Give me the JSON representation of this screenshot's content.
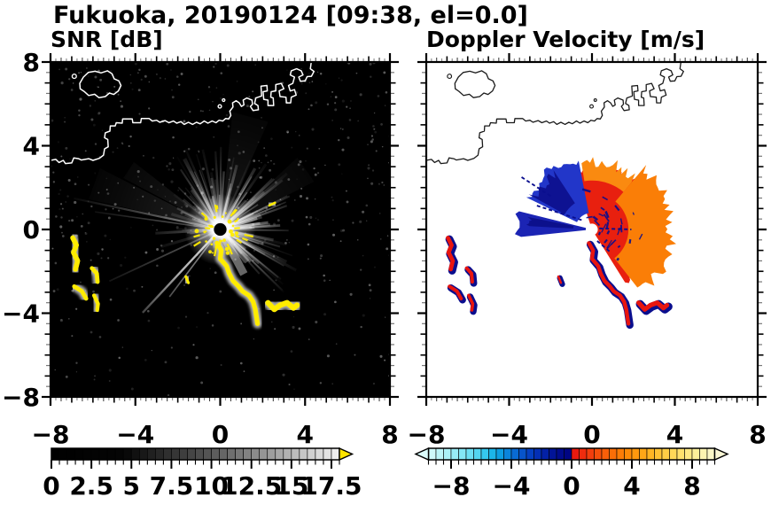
{
  "header": {
    "title": "Fukuoka, 20190124 [09:38, el=0.0]"
  },
  "panels": [
    {
      "id": "snr",
      "title": "SNR [dB]",
      "x_range": [
        -8,
        8
      ],
      "y_range": [
        -8,
        8
      ],
      "x_tick_values": [
        -8,
        -4,
        0,
        4,
        8
      ],
      "x_tick_labels": [
        "−8",
        "−4",
        "0",
        "4",
        "8"
      ],
      "y_tick_values": [
        8,
        4,
        0,
        -4,
        -8
      ],
      "y_tick_labels": [
        "8",
        "4",
        "0",
        "−4",
        "−8"
      ],
      "show_y_labels": true
    },
    {
      "id": "velocity",
      "title": "Doppler Velocity [m/s]",
      "x_range": [
        -8,
        8
      ],
      "y_range": [
        -8,
        8
      ],
      "x_tick_values": [
        -8,
        -4,
        0,
        4,
        8
      ],
      "x_tick_labels": [
        "−8",
        "−4",
        "0",
        "4",
        "8"
      ],
      "y_tick_values": [
        8,
        4,
        0,
        -4,
        -8
      ],
      "y_tick_labels": [],
      "show_y_labels": false
    }
  ],
  "colorbars": [
    {
      "id": "snr",
      "min": 0,
      "max": 18,
      "segment": 0.5,
      "minor_step": 0.5,
      "tick_values": [
        0,
        2.5,
        5,
        7.5,
        10,
        12.5,
        15,
        17.5
      ],
      "tick_labels": [
        "0",
        "2.5",
        "5",
        "7.5",
        "10",
        "12.5",
        "15",
        "17.5"
      ],
      "stops": [
        [
          0,
          "#000000"
        ],
        [
          4.5,
          "#050505"
        ],
        [
          6,
          "#1c1c1c"
        ],
        [
          8,
          "#3a3a3a"
        ],
        [
          10,
          "#585858"
        ],
        [
          12,
          "#7d7d7d"
        ],
        [
          14,
          "#a3a3a3"
        ],
        [
          16,
          "#cbcbcb"
        ],
        [
          17.5,
          "#e8e8e8"
        ],
        [
          18,
          "#f2f2f2"
        ]
      ],
      "over_color": "#ffe400",
      "under_color": null
    },
    {
      "id": "velocity",
      "min": -9.5,
      "max": 9.5,
      "segment": 0.5,
      "minor_step": 0.5,
      "tick_values": [
        -8,
        -4,
        0,
        4,
        8
      ],
      "tick_labels": [
        "−8",
        "−4",
        "0",
        "4",
        "8"
      ],
      "stops": [
        [
          -9.5,
          "#d9fbfb"
        ],
        [
          -8.5,
          "#b4f3f7"
        ],
        [
          -7.5,
          "#8fe9f5"
        ],
        [
          -6.5,
          "#62dcf3"
        ],
        [
          -5.75,
          "#35c8ee"
        ],
        [
          -5,
          "#0fabe6"
        ],
        [
          -4.25,
          "#0b84db"
        ],
        [
          -3.5,
          "#085ed0"
        ],
        [
          -2.75,
          "#0540c2"
        ],
        [
          -2,
          "#0327ae"
        ],
        [
          -1.25,
          "#021497"
        ],
        [
          -0.5,
          "#010787"
        ],
        [
          -0.01,
          "#000480"
        ],
        [
          0,
          "#e60f0f"
        ],
        [
          0.75,
          "#ef2c0e"
        ],
        [
          1.5,
          "#f4470c"
        ],
        [
          2.25,
          "#f85f09"
        ],
        [
          3,
          "#fb7506"
        ],
        [
          3.75,
          "#fd8a07"
        ],
        [
          4.5,
          "#ffa011"
        ],
        [
          5.25,
          "#ffb524"
        ],
        [
          6,
          "#ffc83c"
        ],
        [
          6.75,
          "#ffd858"
        ],
        [
          7.5,
          "#ffe678"
        ],
        [
          8.25,
          "#fdf09a"
        ],
        [
          9,
          "#fcf6bc"
        ],
        [
          9.5,
          "#faf7d0"
        ]
      ],
      "over_color": "#faf7d4",
      "under_color": "#dbfdfd"
    }
  ],
  "map": {
    "coastline_main": [
      [
        -8,
        3.3
      ],
      [
        -7.75,
        3.35
      ],
      [
        -7.6,
        3.2
      ],
      [
        -7.4,
        3.3
      ],
      [
        -7.3,
        3.15
      ],
      [
        -7,
        3.18
      ],
      [
        -6.9,
        3.42
      ],
      [
        -6.68,
        3.38
      ],
      [
        -6.55,
        3.32
      ],
      [
        -6.2,
        3.38
      ],
      [
        -6,
        3.3
      ],
      [
        -5.7,
        3.4
      ],
      [
        -5.5,
        3.55
      ],
      [
        -5.45,
        3.85
      ],
      [
        -5.28,
        3.95
      ],
      [
        -5.3,
        4.3
      ],
      [
        -5.45,
        4.38
      ],
      [
        -5.42,
        4.62
      ],
      [
        -5.2,
        4.7
      ],
      [
        -5.18,
        4.95
      ],
      [
        -4.95,
        4.95
      ],
      [
        -4.9,
        5.1
      ],
      [
        -4.62,
        5.08
      ],
      [
        -4.6,
        5.28
      ],
      [
        -4.15,
        5.28
      ],
      [
        -4.12,
        5.1
      ],
      [
        -3.75,
        5.1
      ],
      [
        -3.72,
        5.3
      ],
      [
        -3.35,
        5.3
      ],
      [
        -3.2,
        5.18
      ],
      [
        -3,
        5.22
      ],
      [
        -2.85,
        5.12
      ],
      [
        -2.6,
        5.2
      ],
      [
        -2.42,
        5.1
      ],
      [
        -2.2,
        5.18
      ],
      [
        -2.05,
        5.08
      ],
      [
        -1.85,
        5.15
      ],
      [
        -1.7,
        5.02
      ],
      [
        -1.5,
        5.12
      ],
      [
        -1.3,
        5.02
      ],
      [
        -1.12,
        5.12
      ],
      [
        -0.95,
        5.05
      ],
      [
        -0.75,
        5.18
      ],
      [
        -0.58,
        5.08
      ],
      [
        -0.38,
        5.18
      ],
      [
        -0.2,
        5.1
      ],
      [
        -0.05,
        5.22
      ],
      [
        0.12,
        5.18
      ],
      [
        0.25,
        5.3
      ],
      [
        0.4,
        5.28
      ],
      [
        0.5,
        5.45
      ],
      [
        0.45,
        5.65
      ],
      [
        0.6,
        5.85
      ],
      [
        0.58,
        6.05
      ],
      [
        0.75,
        6.15
      ],
      [
        0.9,
        6.05
      ],
      [
        1,
        5.88
      ],
      [
        1.12,
        5.95
      ],
      [
        1.08,
        6.18
      ],
      [
        1.25,
        6.28
      ],
      [
        1.5,
        6.18
      ],
      [
        1.52,
        5.98
      ],
      [
        1.42,
        5.88
      ],
      [
        1.55,
        5.68
      ],
      [
        1.8,
        5.72
      ],
      [
        1.78,
        5.92
      ],
      [
        1.62,
        6.02
      ],
      [
        1.68,
        6.28
      ],
      [
        1.95,
        6.38
      ],
      [
        1.92,
        6.85
      ],
      [
        2.2,
        6.88
      ],
      [
        2.22,
        6.62
      ],
      [
        2.02,
        6.58
      ],
      [
        2.05,
        6.22
      ],
      [
        2.25,
        6.18
      ],
      [
        2.25,
        5.92
      ],
      [
        2.52,
        5.92
      ],
      [
        2.5,
        6.28
      ],
      [
        2.38,
        6.32
      ],
      [
        2.4,
        6.58
      ],
      [
        2.62,
        6.62
      ],
      [
        2.62,
        6.92
      ],
      [
        2.88,
        6.98
      ],
      [
        3,
        6.72
      ],
      [
        2.78,
        6.62
      ],
      [
        2.82,
        6.35
      ],
      [
        3.1,
        6.32
      ],
      [
        3.12,
        6.05
      ],
      [
        3.32,
        6.05
      ],
      [
        3.35,
        6.32
      ],
      [
        3.58,
        6.42
      ],
      [
        3.5,
        6.68
      ],
      [
        3.3,
        6.62
      ],
      [
        3.22,
        6.88
      ],
      [
        3.42,
        6.98
      ],
      [
        3.5,
        7.28
      ],
      [
        3.3,
        7.38
      ],
      [
        3.35,
        7.58
      ],
      [
        3.6,
        7.68
      ],
      [
        3.82,
        7.58
      ],
      [
        3.9,
        7.38
      ],
      [
        3.7,
        7.28
      ],
      [
        3.78,
        7.08
      ],
      [
        4,
        7.1
      ],
      [
        4.1,
        7.3
      ],
      [
        4.3,
        7.32
      ],
      [
        4.42,
        7.55
      ],
      [
        4.25,
        7.68
      ],
      [
        4.3,
        8.05
      ]
    ],
    "island": [
      [
        -6.62,
        6.98
      ],
      [
        -6.45,
        7.28
      ],
      [
        -6.22,
        7.5
      ],
      [
        -5.9,
        7.56
      ],
      [
        -5.62,
        7.48
      ],
      [
        -5.32,
        7.58
      ],
      [
        -5.1,
        7.44
      ],
      [
        -5,
        7.2
      ],
      [
        -4.78,
        7.1
      ],
      [
        -4.68,
        6.88
      ],
      [
        -4.8,
        6.62
      ],
      [
        -5.02,
        6.45
      ],
      [
        -5.22,
        6.52
      ],
      [
        -5.42,
        6.35
      ],
      [
        -5.72,
        6.3
      ],
      [
        -5.92,
        6.46
      ],
      [
        -6.2,
        6.4
      ],
      [
        -6.42,
        6.6
      ],
      [
        -6.6,
        6.72
      ]
    ],
    "islets": [
      [
        -0.02,
        5.88,
        0.08
      ],
      [
        0.16,
        6.18,
        0.06
      ],
      [
        -6.88,
        7.32,
        0.1
      ]
    ]
  },
  "scene_snr": {
    "bg": "#000000",
    "coast_color": "#ffffff",
    "clutter_color": "#ffec00",
    "halo_color": "#c9c9c9",
    "seed": 20190124,
    "noise": {
      "count": 750,
      "max_opacity": 0.32
    },
    "ray_sectors": [
      {
        "a0": -58,
        "a1": 125,
        "count": 82,
        "len_min": 1.5,
        "len_max": 4.3,
        "op_min": 0.1,
        "op_max": 0.5
      },
      {
        "a0": 125,
        "a1": 208,
        "count": 32,
        "len_min": 1.1,
        "len_max": 3.1,
        "op_min": 0.07,
        "op_max": 0.28
      }
    ],
    "smears": [
      {
        "a": 160,
        "len": 6.4,
        "half_deg": 7,
        "op": 0.1
      },
      {
        "a": 147,
        "len": 5.2,
        "half_deg": 5,
        "op": 0.08
      },
      {
        "a": 75,
        "len": 5.6,
        "half_deg": 9,
        "op": 0.07
      },
      {
        "a": 35,
        "len": 5.0,
        "half_deg": 8,
        "op": 0.06
      }
    ],
    "long_rays": [
      {
        "a": 168,
        "len": 7.1,
        "w": 2.2,
        "op": 0.42
      },
      {
        "a": 172,
        "len": 6.0,
        "w": 1.6,
        "op": 0.3
      },
      {
        "a": 227,
        "len": 5.4,
        "w": 2.4,
        "op": 0.8
      },
      {
        "a": 233,
        "len": 4.0,
        "w": 1.7,
        "op": 0.5
      },
      {
        "a": 205,
        "len": 5.8,
        "w": 1.8,
        "op": 0.3
      },
      {
        "a": 298,
        "len": 2.4,
        "w": 9,
        "op": 0.45
      },
      {
        "a": 310,
        "len": 2.0,
        "w": 6,
        "op": 0.3
      }
    ],
    "glow": {
      "r_core": 0.65,
      "r_outer": 1.7
    },
    "center_speckles": {
      "count": 44,
      "r0": 0.32,
      "r1": 1.2
    },
    "center_disk": {
      "r": 0.3,
      "color": "#000000"
    }
  },
  "scene_velocity": {
    "bg": "#ffffff",
    "coast_color": "#1a1a1a",
    "seed": 938,
    "navy": "#0a0e8e",
    "red": "#e8150f",
    "wedges": [
      {
        "a0": -58,
        "a1": 108,
        "r0": 0.26,
        "r1": 3.1,
        "jag": 0.5,
        "color": "#e8200f"
      },
      {
        "a0": -52,
        "a1": 50,
        "r0": 1.75,
        "r1": 3.9,
        "jag": 0.45,
        "color": "#fa7e07"
      },
      {
        "a0": 50,
        "a1": 99,
        "r0": 2.35,
        "r1": 3.35,
        "jag": 0.55,
        "color": "#fa8a10"
      },
      {
        "a0": -86,
        "a1": -63,
        "r0": 0.32,
        "r1": 1.05,
        "jag": 0.5,
        "color": "#ffffff"
      },
      {
        "a0": 101,
        "a1": 154,
        "r0": 0.8,
        "r1": 3.55,
        "jag": 0.5,
        "color": "#2236c9"
      },
      {
        "a0": 123,
        "a1": 151,
        "r0": 1.5,
        "r1": 3.3,
        "jag": 0.5,
        "color": "#0e1292"
      },
      {
        "a0": 166,
        "a1": 186,
        "r0": 0.3,
        "r1": 3.7,
        "jag": 0.35,
        "color": "#1b24b4"
      },
      {
        "a0": 169,
        "a1": 177,
        "r0": 0.9,
        "r1": 3.2,
        "jag": 0.4,
        "color": "#0c108c"
      }
    ],
    "navy_dashes": {
      "count": 26,
      "a0": -55,
      "a1": 100,
      "r_min": 0.4,
      "r_max": 2.4
    },
    "navy_lines": [
      [
        [
          0.35,
          0.05
        ],
        [
          1.9,
          0.0
        ]
      ],
      [
        [
          -0.5,
          0.45
        ],
        [
          -2.7,
          1.15
        ]
      ],
      [
        [
          -2.0,
          1.6
        ],
        [
          -3.4,
          2.5
        ]
      ],
      [
        [
          0.25,
          -0.55
        ],
        [
          0.85,
          -1.05
        ]
      ]
    ],
    "center_disk": {
      "r": 0.28,
      "color": "#ffffff"
    }
  },
  "clutter_blobs": [
    {
      "pts": [
        [
          -6.95,
          -0.4
        ],
        [
          -6.78,
          -0.75
        ],
        [
          -6.92,
          -1.1
        ],
        [
          -6.72,
          -1.5
        ],
        [
          -6.82,
          -1.9
        ]
      ],
      "w": 0.24
    },
    {
      "pts": [
        [
          -6.05,
          -1.85
        ],
        [
          -5.82,
          -2.1
        ],
        [
          -5.78,
          -2.5
        ]
      ],
      "w": 0.2
    },
    {
      "pts": [
        [
          -6.88,
          -2.72
        ],
        [
          -6.52,
          -2.95
        ],
        [
          -6.32,
          -3.3
        ]
      ],
      "w": 0.2
    },
    {
      "pts": [
        [
          -5.95,
          -3.15
        ],
        [
          -5.76,
          -3.55
        ],
        [
          -5.8,
          -3.85
        ]
      ],
      "w": 0.18
    },
    {
      "pts": [
        [
          -1.62,
          -2.25
        ],
        [
          -1.5,
          -2.55
        ]
      ],
      "w": 0.13
    },
    {
      "pts": [
        [
          2.32,
          1.15
        ],
        [
          2.58,
          1.28
        ]
      ],
      "w": 0.11,
      "snr_only": true
    },
    {
      "pts": [
        [
          -0.15,
          -0.65
        ],
        [
          0.05,
          -1.0
        ],
        [
          0.0,
          -1.4
        ],
        [
          0.3,
          -1.75
        ],
        [
          0.42,
          -2.1
        ],
        [
          0.6,
          -2.45
        ],
        [
          0.85,
          -2.7
        ],
        [
          1.05,
          -2.95
        ],
        [
          1.35,
          -3.15
        ],
        [
          1.55,
          -3.45
        ],
        [
          1.65,
          -3.8
        ],
        [
          1.72,
          -4.25
        ],
        [
          1.76,
          -4.5
        ]
      ],
      "w": 0.22
    },
    {
      "pts": [
        [
          2.25,
          -3.5
        ],
        [
          2.55,
          -3.82
        ],
        [
          2.82,
          -3.62
        ],
        [
          3.15,
          -3.5
        ],
        [
          3.45,
          -3.75
        ],
        [
          3.62,
          -3.62
        ]
      ],
      "w": 0.26
    }
  ],
  "chart_data": [
    {
      "type": "heatmap",
      "panel": "left",
      "title": "SNR [dB]",
      "x_range": [
        -8,
        8
      ],
      "y_range": [
        -8,
        8
      ],
      "x_ticks": [
        -8,
        -4,
        0,
        4,
        8
      ],
      "y_ticks": [
        8,
        4,
        0,
        -4,
        -8
      ],
      "colorbar": {
        "range": [
          0,
          18
        ],
        "label_values": [
          0,
          2.5,
          5,
          7.5,
          10,
          12.5,
          15,
          17.5
        ],
        "colormap": "black-to-white grayscale",
        "overflow": "yellow arrow above 18 dB"
      },
      "radar_center": [
        0,
        0
      ],
      "content": "PPI radar SNR image on black background: bright white radial beams fan out from the radar at (0,0) mostly toward the north and upper-left; yellow high-SNR ground-clutter blobs with gray halos lie along a chain from (0,-0.7) to (1.8,-4.5), a cluster near (2.2,-3.5)-(3.6,-3.6), and along the west edge near x=-7 to -5.8, y=-0.4 to -3.9; white coastline of Fukuoka/Hakata Bay drawn across the upper half."
    },
    {
      "type": "heatmap",
      "panel": "right",
      "title": "Doppler Velocity [m/s]",
      "x_range": [
        -8,
        8
      ],
      "y_range": [
        -8,
        8
      ],
      "x_ticks": [
        -8,
        -4,
        0,
        4,
        8
      ],
      "y_ticks": [
        8,
        4,
        0,
        -4,
        -8
      ],
      "colorbar": {
        "range": [
          -9.5,
          9.5
        ],
        "label_values": [
          -8,
          -4,
          0,
          4,
          8
        ],
        "colormap": "pale-cyan to navy for negative, red to pale-yellow for positive",
        "overflow": "arrows at both ends"
      },
      "radar_center": [
        0,
        0
      ],
      "content": "Doppler velocity field on white background: navy-blue approaching wedge pointing west from the radar to about (-3.7,0.3), blue/navy mottled fan to the upper-left, broad red receding fan north and east turning orange toward the outer edge (~4 km), navy speckles inside the red fan, red/navy clutter blobs matching the SNR panel, black coastline over the upper half."
    }
  ]
}
